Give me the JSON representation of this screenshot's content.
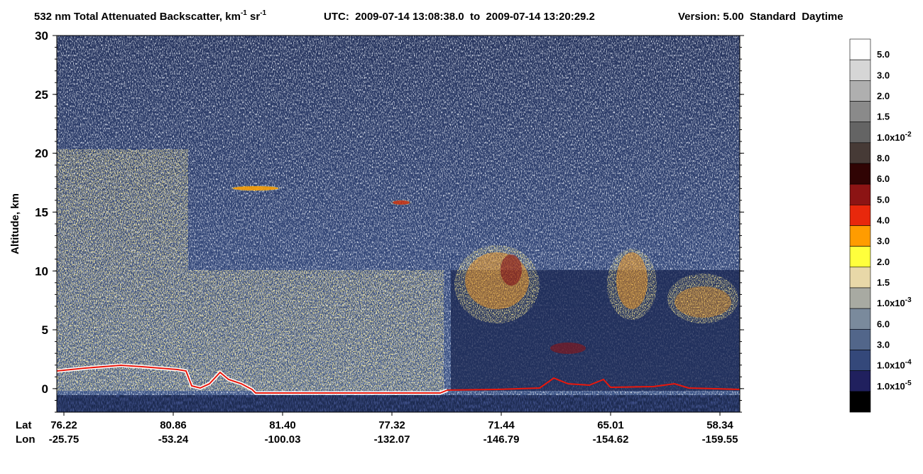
{
  "chart_data": {
    "type": "heatmap",
    "title": {
      "main": "532 nm Total Attenuated Backscatter, km",
      "main_exp": "-1",
      "unit2": " sr",
      "unit2_exp": "-1",
      "utc": "UTC:  2009-07-14 13:08:38.0  to  2009-07-14 13:20:29.2",
      "version": "Version: 5.00  Standard  Daytime"
    },
    "y_label": "Altitude, km",
    "ylim": [
      -2,
      30
    ],
    "yticks": [
      0,
      5,
      10,
      15,
      20,
      25,
      30
    ],
    "x_rows": {
      "lat_label": "Lat",
      "lon_label": "Lon",
      "lat": [
        "76.22",
        "80.86",
        "81.40",
        "77.32",
        "71.44",
        "65.01",
        "58.34"
      ],
      "lon": [
        "-25.75",
        "-53.24",
        "-100.03",
        "-132.07",
        "-146.79",
        "-154.62",
        "-159.55"
      ]
    },
    "colorbar": {
      "colors": [
        "#ffffff",
        "#d6d6d6",
        "#afafaf",
        "#8a8a8a",
        "#646464",
        "#463a36",
        "#300404",
        "#8c1414",
        "#e8280c",
        "#ff9c00",
        "#ffff3c",
        "#e8d8a8",
        "#a8aaa2",
        "#7a8a9c",
        "#52668a",
        "#34487a",
        "#20205e",
        "#000000"
      ],
      "labels": [
        {
          "base": "5.0"
        },
        {
          "base": "3.0"
        },
        {
          "base": "2.0"
        },
        {
          "base": "1.5"
        },
        {
          "base": "1.0x10",
          "exp": "-2"
        },
        {
          "base": "8.0"
        },
        {
          "base": "6.0"
        },
        {
          "base": "5.0"
        },
        {
          "base": "4.0"
        },
        {
          "base": "3.0"
        },
        {
          "base": "2.0"
        },
        {
          "base": "1.5"
        },
        {
          "base": "1.0x10",
          "exp": "-3"
        },
        {
          "base": "6.0"
        },
        {
          "base": "3.0"
        },
        {
          "base": "1.0x10",
          "exp": "-4"
        },
        {
          "base": "1.0x10",
          "exp": "-5"
        }
      ]
    }
  }
}
